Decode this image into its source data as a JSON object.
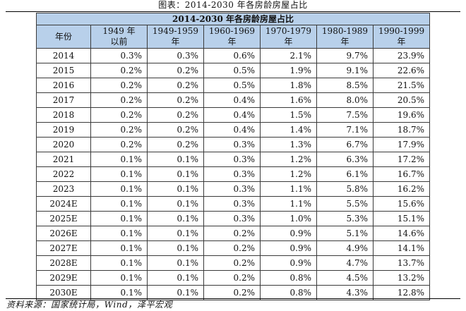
{
  "caption": "图表：2014-2030 年各房龄房屋占比",
  "table": {
    "title": "2014-2030 年各房龄房屋占比",
    "headers": [
      [
        "年份"
      ],
      [
        "1949 年",
        "以前"
      ],
      [
        "1949-1959",
        "年"
      ],
      [
        "1960-1969",
        "年"
      ],
      [
        "1970-1979",
        "年"
      ],
      [
        "1980-1989",
        "年"
      ],
      [
        "1990-1999",
        "年"
      ]
    ],
    "rows": [
      [
        "2014",
        "0.3%",
        "0.3%",
        "0.6%",
        "2.1%",
        "9.7%",
        "23.9%"
      ],
      [
        "2015",
        "0.2%",
        "0.2%",
        "0.5%",
        "1.9%",
        "9.1%",
        "22.6%"
      ],
      [
        "2016",
        "0.2%",
        "0.2%",
        "0.5%",
        "1.8%",
        "8.5%",
        "21.5%"
      ],
      [
        "2017",
        "0.2%",
        "0.2%",
        "0.4%",
        "1.6%",
        "8.0%",
        "20.5%"
      ],
      [
        "2018",
        "0.2%",
        "0.2%",
        "0.4%",
        "1.5%",
        "7.5%",
        "19.6%"
      ],
      [
        "2019",
        "0.2%",
        "0.2%",
        "0.4%",
        "1.4%",
        "7.1%",
        "18.7%"
      ],
      [
        "2020",
        "0.2%",
        "0.2%",
        "0.3%",
        "1.3%",
        "6.7%",
        "17.9%"
      ],
      [
        "2021",
        "0.1%",
        "0.1%",
        "0.3%",
        "1.2%",
        "6.3%",
        "17.2%"
      ],
      [
        "2022",
        "0.1%",
        "0.1%",
        "0.3%",
        "1.2%",
        "6.1%",
        "16.7%"
      ],
      [
        "2023",
        "0.1%",
        "0.1%",
        "0.3%",
        "1.1%",
        "5.8%",
        "16.2%"
      ],
      [
        "2024E",
        "0.1%",
        "0.1%",
        "0.3%",
        "1.1%",
        "5.5%",
        "15.6%"
      ],
      [
        "2025E",
        "0.1%",
        "0.1%",
        "0.3%",
        "1.0%",
        "5.3%",
        "15.1%"
      ],
      [
        "2026E",
        "0.1%",
        "0.1%",
        "0.2%",
        "0.9%",
        "5.1%",
        "14.6%"
      ],
      [
        "2027E",
        "0.1%",
        "0.1%",
        "0.2%",
        "0.9%",
        "4.9%",
        "14.1%"
      ],
      [
        "2028E",
        "0.1%",
        "0.1%",
        "0.2%",
        "0.9%",
        "4.7%",
        "13.7%"
      ],
      [
        "2029E",
        "0.1%",
        "0.1%",
        "0.2%",
        "0.8%",
        "4.5%",
        "13.2%"
      ],
      [
        "2030E",
        "0.1%",
        "0.1%",
        "0.2%",
        "0.8%",
        "4.3%",
        "12.8%"
      ]
    ]
  },
  "source": "资料来源：国家统计局，Wind，泽平宏观",
  "colors": {
    "header_bg": "#b8d0ea",
    "border": "#3a3a3a"
  }
}
